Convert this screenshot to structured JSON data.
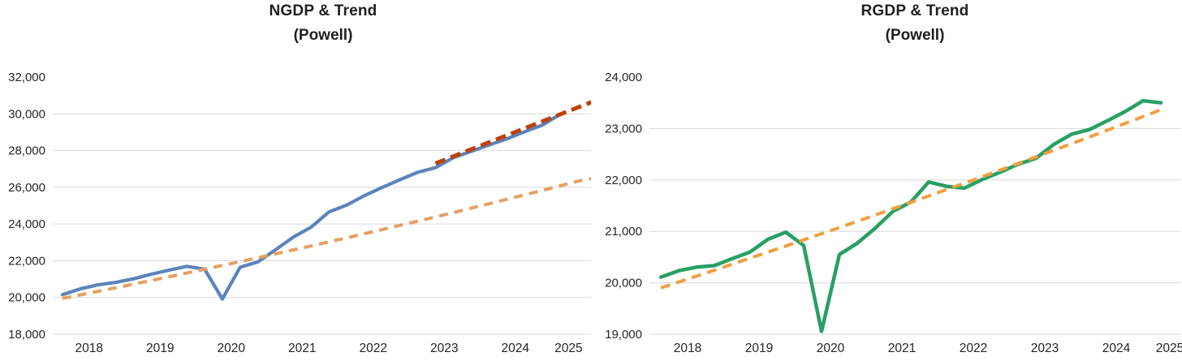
{
  "theme": {
    "background": "#FFFFFF",
    "gridline": "#D9D9D9",
    "axis_text": "#262626",
    "title_text": "#1F1F1F"
  },
  "chart_data": [
    {
      "type": "line",
      "title": "NGDP & Trend",
      "subtitle": "(Powell)",
      "y_axis": {
        "min": 18000,
        "max": 32000,
        "step": 2000,
        "tick_labels": [
          "32,000",
          "30,000",
          "28,000",
          "26,000",
          "24,000",
          "22,000",
          "20,000",
          "18,000"
        ]
      },
      "x_axis": {
        "tick_labels": [
          "2018",
          "2019",
          "2020",
          "2021",
          "2022",
          "2023",
          "2024",
          "2025"
        ]
      },
      "series": [
        {
          "id": "ngdp",
          "color": "#5B84BB",
          "line_style": "solid",
          "width": 4.2,
          "x": [
            2018,
            2018.25,
            2018.5,
            2018.75,
            2019,
            2019.25,
            2019.5,
            2019.75,
            2020,
            2020.25,
            2020.5,
            2020.75,
            2021,
            2021.25,
            2021.5,
            2021.75,
            2022,
            2022.25,
            2022.5,
            2022.75,
            2023,
            2023.25,
            2023.5,
            2023.75,
            2024,
            2024.25,
            2024.5,
            2024.75,
            2025
          ],
          "values": [
            20150,
            20470,
            20690,
            20820,
            21015,
            21270,
            21490,
            21695,
            21540,
            19915,
            21650,
            21935,
            22600,
            23290,
            23830,
            24655,
            25030,
            25545,
            25995,
            26410,
            26815,
            27065,
            27610,
            27955,
            28295,
            28630,
            29015,
            29375,
            29960
          ]
        },
        {
          "id": "ngdp-trend",
          "color": "#E5A062",
          "line_style": "dashed",
          "dash": "11 8",
          "width": 4,
          "x": [
            2018,
            2018.25,
            2018.5,
            2018.75,
            2019,
            2019.25,
            2019.5,
            2019.75,
            2020,
            2020.25,
            2020.5,
            2020.75,
            2021,
            2021.25,
            2021.5,
            2021.75,
            2022,
            2022.25,
            2022.5,
            2022.75,
            2023,
            2023.25,
            2023.5,
            2023.75,
            2024,
            2024.25,
            2024.5,
            2024.75,
            2025,
            2025.25,
            2025.45
          ],
          "values": [
            19950,
            20142,
            20335,
            20531,
            20728,
            20927,
            21128,
            21331,
            21536,
            21743,
            21952,
            22163,
            22376,
            22591,
            22808,
            23027,
            23248,
            23472,
            23697,
            23925,
            24155,
            24387,
            24621,
            24858,
            25097,
            25338,
            25581,
            25827,
            26075,
            26326,
            26480
          ]
        },
        {
          "id": "ngdp-new-trend",
          "color": "#BE410A",
          "line_style": "dashed",
          "dash": "13 7",
          "width": 5,
          "x": [
            2023.25,
            2023.5,
            2023.75,
            2024,
            2024.25,
            2024.5,
            2024.75,
            2025,
            2025.25,
            2025.45
          ],
          "values": [
            27300,
            27680,
            28060,
            28440,
            28820,
            29200,
            29580,
            29960,
            30340,
            30640
          ]
        }
      ]
    },
    {
      "type": "line",
      "title": "RGDP & Trend",
      "subtitle": "(Powell)",
      "y_axis": {
        "min": 19000,
        "max": 24000,
        "step": 1000,
        "tick_labels": [
          "24,000",
          "23,000",
          "22,000",
          "21,000",
          "20,000",
          "19,000"
        ]
      },
      "x_axis": {
        "tick_labels": [
          "2018",
          "2019",
          "2020",
          "2021",
          "2022",
          "2023",
          "2024",
          "2025"
        ]
      },
      "series": [
        {
          "id": "rgdp",
          "color": "#28A063",
          "line_style": "solid",
          "width": 4.5,
          "x": [
            2018,
            2018.25,
            2018.5,
            2018.75,
            2019,
            2019.25,
            2019.5,
            2019.75,
            2020,
            2020.25,
            2020.5,
            2020.75,
            2021,
            2021.25,
            2021.5,
            2021.75,
            2022,
            2022.25,
            2022.5,
            2022.75,
            2023,
            2023.25,
            2023.5,
            2023.75,
            2024,
            2024.25,
            2024.5,
            2024.75,
            2025
          ],
          "values": [
            20110,
            20235,
            20305,
            20335,
            20470,
            20600,
            20845,
            20985,
            20725,
            19055,
            20550,
            20770,
            21060,
            21390,
            21570,
            21960,
            21875,
            21840,
            22010,
            22150,
            22305,
            22420,
            22690,
            22890,
            22980,
            23150,
            23330,
            23540,
            23500
          ]
        },
        {
          "id": "rgdp-trend",
          "color": "#F09F42",
          "line_style": "dashed",
          "dash": "12 8",
          "width": 4,
          "x": [
            2018,
            2018.25,
            2018.5,
            2018.75,
            2019,
            2019.25,
            2019.5,
            2019.75,
            2020,
            2020.25,
            2020.5,
            2020.75,
            2021,
            2021.25,
            2021.5,
            2021.75,
            2022,
            2022.25,
            2022.5,
            2022.75,
            2023,
            2023.25,
            2023.5,
            2023.75,
            2024,
            2024.25,
            2024.5,
            2024.75,
            2025
          ],
          "values": [
            19900,
            20014,
            20129,
            20245,
            20362,
            20479,
            20596,
            20715,
            20834,
            20954,
            21074,
            21195,
            21317,
            21440,
            21563,
            21687,
            21812,
            21937,
            22063,
            22190,
            22318,
            22446,
            22575,
            22705,
            22835,
            22967,
            23099,
            23232,
            23365
          ]
        }
      ]
    }
  ]
}
